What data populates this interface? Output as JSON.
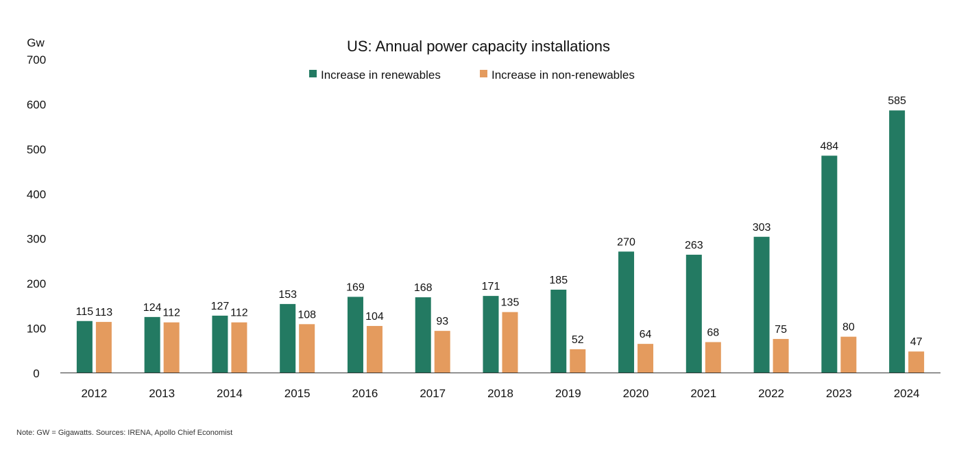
{
  "chart_data": {
    "type": "bar",
    "title": "US: Annual power capacity installations",
    "ylabel": "Gw",
    "xlabel": "",
    "ylim": [
      0,
      700
    ],
    "yticks": [
      0,
      100,
      200,
      300,
      400,
      500,
      600,
      700
    ],
    "grid": false,
    "legend_position": "top-center",
    "categories": [
      "2012",
      "2013",
      "2014",
      "2015",
      "2016",
      "2017",
      "2018",
      "2019",
      "2020",
      "2021",
      "2022",
      "2023",
      "2024"
    ],
    "series": [
      {
        "name": "Increase in renewables",
        "color": "#237A62",
        "values": [
          115,
          124,
          127,
          153,
          169,
          168,
          171,
          185,
          270,
          263,
          303,
          484,
          585
        ]
      },
      {
        "name": "Increase in non-renewables",
        "color": "#E49B5E",
        "values": [
          113,
          112,
          112,
          108,
          104,
          93,
          135,
          52,
          64,
          68,
          75,
          80,
          47
        ]
      }
    ]
  },
  "footnote": "Note: GW = Gigawatts. Sources: IRENA, Apollo Chief Economist"
}
